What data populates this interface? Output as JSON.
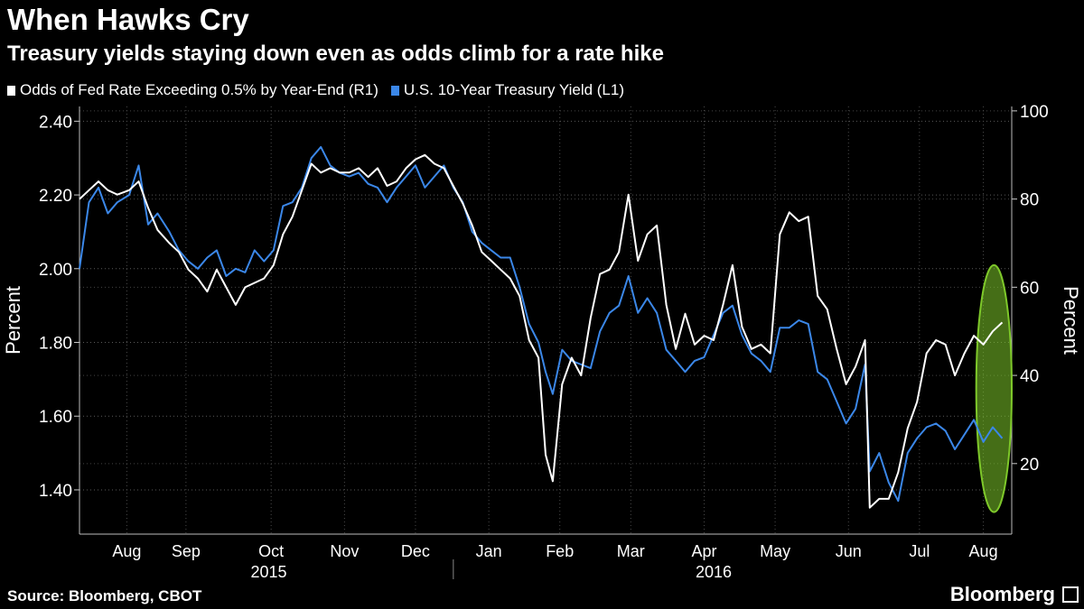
{
  "header": {
    "title": "When Hawks Cry",
    "subtitle": "Treasury yields staying down even as odds climb for a rate hike"
  },
  "footer": {
    "source": "Source: Bloomberg, CBOT",
    "brand": "Bloomberg"
  },
  "chart_data": {
    "type": "line",
    "grid": true,
    "legend_placement": "top-left",
    "series": [
      {
        "name": "Odds of Fed Rate Exceeding 0.5% by Year-End (R1)",
        "axis": "right",
        "color": "#ffffff",
        "points": [
          [
            "2015-07-27",
            80
          ],
          [
            "2015-07-31",
            82
          ],
          [
            "2015-08-04",
            84
          ],
          [
            "2015-08-08",
            82
          ],
          [
            "2015-08-12",
            81
          ],
          [
            "2015-08-17",
            82
          ],
          [
            "2015-08-21",
            84
          ],
          [
            "2015-08-25",
            78
          ],
          [
            "2015-08-29",
            73
          ],
          [
            "2015-09-03",
            70
          ],
          [
            "2015-09-07",
            68
          ],
          [
            "2015-09-11",
            64
          ],
          [
            "2015-09-15",
            62
          ],
          [
            "2015-09-19",
            59
          ],
          [
            "2015-09-23",
            64
          ],
          [
            "2015-09-27",
            60
          ],
          [
            "2015-10-01",
            56
          ],
          [
            "2015-10-05",
            60
          ],
          [
            "2015-10-09",
            61
          ],
          [
            "2015-10-13",
            62
          ],
          [
            "2015-10-17",
            65
          ],
          [
            "2015-10-21",
            72
          ],
          [
            "2015-10-25",
            76
          ],
          [
            "2015-10-29",
            82
          ],
          [
            "2015-11-02",
            88
          ],
          [
            "2015-11-06",
            86
          ],
          [
            "2015-11-10",
            87
          ],
          [
            "2015-11-14",
            86
          ],
          [
            "2015-11-18",
            86
          ],
          [
            "2015-11-22",
            87
          ],
          [
            "2015-11-26",
            85
          ],
          [
            "2015-11-30",
            87
          ],
          [
            "2015-12-04",
            83
          ],
          [
            "2015-12-08",
            84
          ],
          [
            "2015-12-12",
            87
          ],
          [
            "2015-12-16",
            89
          ],
          [
            "2015-12-20",
            90
          ],
          [
            "2015-12-24",
            88
          ],
          [
            "2015-12-28",
            87
          ],
          [
            "2016-01-01",
            83
          ],
          [
            "2016-01-05",
            79
          ],
          [
            "2016-01-09",
            74
          ],
          [
            "2016-01-13",
            68
          ],
          [
            "2016-01-17",
            66
          ],
          [
            "2016-01-21",
            64
          ],
          [
            "2016-01-25",
            62
          ],
          [
            "2016-01-29",
            58
          ],
          [
            "2016-02-02",
            48
          ],
          [
            "2016-02-06",
            44
          ],
          [
            "2016-02-09",
            22
          ],
          [
            "2016-02-12",
            16
          ],
          [
            "2016-02-16",
            38
          ],
          [
            "2016-02-20",
            44
          ],
          [
            "2016-02-24",
            40
          ],
          [
            "2016-02-28",
            53
          ],
          [
            "2016-03-03",
            63
          ],
          [
            "2016-03-07",
            64
          ],
          [
            "2016-03-11",
            68
          ],
          [
            "2016-03-15",
            81
          ],
          [
            "2016-03-19",
            66
          ],
          [
            "2016-03-23",
            72
          ],
          [
            "2016-03-27",
            74
          ],
          [
            "2016-03-31",
            56
          ],
          [
            "2016-04-04",
            46
          ],
          [
            "2016-04-08",
            54
          ],
          [
            "2016-04-12",
            47
          ],
          [
            "2016-04-16",
            49
          ],
          [
            "2016-04-20",
            48
          ],
          [
            "2016-04-24",
            56
          ],
          [
            "2016-04-28",
            65
          ],
          [
            "2016-05-02",
            51
          ],
          [
            "2016-05-06",
            46
          ],
          [
            "2016-05-10",
            47
          ],
          [
            "2016-05-14",
            45
          ],
          [
            "2016-05-18",
            72
          ],
          [
            "2016-05-22",
            77
          ],
          [
            "2016-05-26",
            75
          ],
          [
            "2016-05-30",
            76
          ],
          [
            "2016-06-03",
            58
          ],
          [
            "2016-06-07",
            55
          ],
          [
            "2016-06-11",
            46
          ],
          [
            "2016-06-15",
            38
          ],
          [
            "2016-06-19",
            42
          ],
          [
            "2016-06-23",
            48
          ],
          [
            "2016-06-25",
            10
          ],
          [
            "2016-06-29",
            12
          ],
          [
            "2016-07-03",
            12
          ],
          [
            "2016-07-07",
            18
          ],
          [
            "2016-07-11",
            28
          ],
          [
            "2016-07-15",
            34
          ],
          [
            "2016-07-19",
            45
          ],
          [
            "2016-07-23",
            48
          ],
          [
            "2016-07-27",
            47
          ],
          [
            "2016-07-31",
            40
          ],
          [
            "2016-08-04",
            45
          ],
          [
            "2016-08-08",
            49
          ],
          [
            "2016-08-12",
            47
          ],
          [
            "2016-08-16",
            50
          ],
          [
            "2016-08-20",
            52
          ]
        ]
      },
      {
        "name": "U.S. 10-Year Treasury Yield (L1)",
        "axis": "left",
        "color": "#3b87e8",
        "points": [
          [
            "2015-07-27",
            2.0
          ],
          [
            "2015-07-31",
            2.18
          ],
          [
            "2015-08-04",
            2.22
          ],
          [
            "2015-08-08",
            2.15
          ],
          [
            "2015-08-12",
            2.18
          ],
          [
            "2015-08-17",
            2.2
          ],
          [
            "2015-08-21",
            2.28
          ],
          [
            "2015-08-25",
            2.12
          ],
          [
            "2015-08-29",
            2.15
          ],
          [
            "2015-09-03",
            2.1
          ],
          [
            "2015-09-07",
            2.05
          ],
          [
            "2015-09-11",
            2.02
          ],
          [
            "2015-09-15",
            2.0
          ],
          [
            "2015-09-19",
            2.03
          ],
          [
            "2015-09-23",
            2.05
          ],
          [
            "2015-09-27",
            1.98
          ],
          [
            "2015-10-01",
            2.0
          ],
          [
            "2015-10-05",
            1.99
          ],
          [
            "2015-10-09",
            2.05
          ],
          [
            "2015-10-13",
            2.02
          ],
          [
            "2015-10-17",
            2.05
          ],
          [
            "2015-10-21",
            2.17
          ],
          [
            "2015-10-25",
            2.18
          ],
          [
            "2015-10-29",
            2.22
          ],
          [
            "2015-11-02",
            2.3
          ],
          [
            "2015-11-06",
            2.33
          ],
          [
            "2015-11-10",
            2.28
          ],
          [
            "2015-11-14",
            2.26
          ],
          [
            "2015-11-18",
            2.25
          ],
          [
            "2015-11-22",
            2.26
          ],
          [
            "2015-11-26",
            2.23
          ],
          [
            "2015-11-30",
            2.22
          ],
          [
            "2015-12-04",
            2.18
          ],
          [
            "2015-12-08",
            2.22
          ],
          [
            "2015-12-12",
            2.25
          ],
          [
            "2015-12-16",
            2.28
          ],
          [
            "2015-12-20",
            2.22
          ],
          [
            "2015-12-24",
            2.25
          ],
          [
            "2015-12-28",
            2.28
          ],
          [
            "2016-01-01",
            2.22
          ],
          [
            "2016-01-05",
            2.18
          ],
          [
            "2016-01-09",
            2.1
          ],
          [
            "2016-01-13",
            2.07
          ],
          [
            "2016-01-17",
            2.05
          ],
          [
            "2016-01-21",
            2.03
          ],
          [
            "2016-01-25",
            2.03
          ],
          [
            "2016-01-29",
            1.95
          ],
          [
            "2016-02-02",
            1.85
          ],
          [
            "2016-02-06",
            1.8
          ],
          [
            "2016-02-09",
            1.72
          ],
          [
            "2016-02-12",
            1.66
          ],
          [
            "2016-02-16",
            1.78
          ],
          [
            "2016-02-20",
            1.75
          ],
          [
            "2016-02-24",
            1.74
          ],
          [
            "2016-02-28",
            1.73
          ],
          [
            "2016-03-03",
            1.83
          ],
          [
            "2016-03-07",
            1.88
          ],
          [
            "2016-03-11",
            1.9
          ],
          [
            "2016-03-15",
            1.98
          ],
          [
            "2016-03-19",
            1.88
          ],
          [
            "2016-03-23",
            1.92
          ],
          [
            "2016-03-27",
            1.88
          ],
          [
            "2016-03-31",
            1.78
          ],
          [
            "2016-04-04",
            1.75
          ],
          [
            "2016-04-08",
            1.72
          ],
          [
            "2016-04-12",
            1.75
          ],
          [
            "2016-04-16",
            1.76
          ],
          [
            "2016-04-20",
            1.82
          ],
          [
            "2016-04-24",
            1.88
          ],
          [
            "2016-04-28",
            1.9
          ],
          [
            "2016-05-02",
            1.82
          ],
          [
            "2016-05-06",
            1.77
          ],
          [
            "2016-05-10",
            1.75
          ],
          [
            "2016-05-14",
            1.72
          ],
          [
            "2016-05-18",
            1.84
          ],
          [
            "2016-05-22",
            1.84
          ],
          [
            "2016-05-26",
            1.86
          ],
          [
            "2016-05-30",
            1.85
          ],
          [
            "2016-06-03",
            1.72
          ],
          [
            "2016-06-07",
            1.7
          ],
          [
            "2016-06-11",
            1.64
          ],
          [
            "2016-06-15",
            1.58
          ],
          [
            "2016-06-19",
            1.62
          ],
          [
            "2016-06-23",
            1.74
          ],
          [
            "2016-06-25",
            1.45
          ],
          [
            "2016-06-29",
            1.5
          ],
          [
            "2016-07-03",
            1.42
          ],
          [
            "2016-07-07",
            1.37
          ],
          [
            "2016-07-11",
            1.5
          ],
          [
            "2016-07-15",
            1.54
          ],
          [
            "2016-07-19",
            1.57
          ],
          [
            "2016-07-23",
            1.58
          ],
          [
            "2016-07-27",
            1.56
          ],
          [
            "2016-07-31",
            1.51
          ],
          [
            "2016-08-04",
            1.55
          ],
          [
            "2016-08-08",
            1.59
          ],
          [
            "2016-08-12",
            1.53
          ],
          [
            "2016-08-16",
            1.57
          ],
          [
            "2016-08-20",
            1.54
          ]
        ]
      }
    ],
    "left_axis": {
      "label": "Percent",
      "range": [
        1.28,
        2.44
      ],
      "ticks": [
        1.4,
        1.6,
        1.8,
        2.0,
        2.2,
        2.4
      ],
      "tick_labels": [
        "1.40",
        "1.60",
        "1.80",
        "2.00",
        "2.20",
        "2.40"
      ]
    },
    "right_axis": {
      "label": "Percent",
      "range": [
        4,
        101
      ],
      "ticks": [
        20,
        40,
        60,
        80,
        100
      ],
      "tick_labels": [
        "20",
        "40",
        "60",
        "80",
        "100"
      ]
    },
    "x_axis": {
      "range": [
        "2015-07-27",
        "2016-08-24"
      ],
      "month_labels": [
        {
          "label": "Aug",
          "date": "2015-08-16"
        },
        {
          "label": "Sep",
          "date": "2015-09-10"
        },
        {
          "label": "Oct",
          "date": "2015-10-16"
        },
        {
          "label": "Nov",
          "date": "2015-11-16"
        },
        {
          "label": "Dec",
          "date": "2015-12-16"
        },
        {
          "label": "Jan",
          "date": "2016-01-16"
        },
        {
          "label": "Feb",
          "date": "2016-02-15"
        },
        {
          "label": "Mar",
          "date": "2016-03-16"
        },
        {
          "label": "Apr",
          "date": "2016-04-16"
        },
        {
          "label": "May",
          "date": "2016-05-16"
        },
        {
          "label": "Jun",
          "date": "2016-06-16"
        },
        {
          "label": "Jul",
          "date": "2016-07-16"
        },
        {
          "label": "Aug",
          "date": "2016-08-12"
        }
      ],
      "year_labels": [
        {
          "label": "2015",
          "date": "2015-10-15"
        },
        {
          "label": "2016",
          "date": "2016-04-20"
        }
      ],
      "year_divider": "2016-01-01"
    },
    "highlight": {
      "shape": "ellipse",
      "color": "#7ec82a",
      "x_range": [
        "2016-08-09",
        "2016-08-24"
      ],
      "y_range_right": [
        9,
        65
      ]
    }
  }
}
